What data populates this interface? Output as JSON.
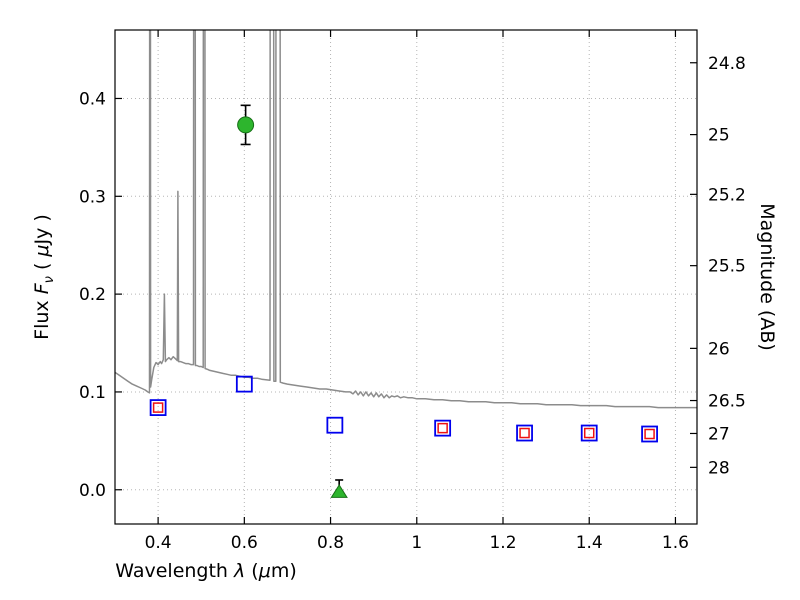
{
  "figure": {
    "xlabel": {
      "pre": "Wavelength ",
      "sym": "λ",
      "p1": " (",
      "mu": "μ",
      "post": "m)"
    },
    "ylabel_left": {
      "pre": "Flux ",
      "fsym": "F",
      "fsub": "ν",
      "p1": " ( ",
      "mu": "μ",
      "post": "Jy )"
    },
    "ylabel_right": "Magnitude (AB)"
  },
  "chart_data": {
    "type": "line",
    "title": "",
    "xlabel": "Wavelength λ (μm)",
    "ylabel": "Flux Fν ( μJy )",
    "ylabel_right": "Magnitude (AB)",
    "xlim": [
      0.3,
      1.65
    ],
    "ylim": [
      -0.035,
      0.47
    ],
    "ab_zeropoint": 23.9,
    "grid": {
      "show": true,
      "style": "dotted",
      "color": "#b5b5b5"
    },
    "frame_color": "#000000",
    "x_ticks": [
      {
        "v": 0.4,
        "label": "0.4"
      },
      {
        "v": 0.6,
        "label": "0.6"
      },
      {
        "v": 0.8,
        "label": "0.8"
      },
      {
        "v": 1.0,
        "label": "1"
      },
      {
        "v": 1.2,
        "label": "1.2"
      },
      {
        "v": 1.4,
        "label": "1.4"
      },
      {
        "v": 1.6,
        "label": "1.6"
      }
    ],
    "y_ticks_left": [
      {
        "v": 0.0,
        "label": "0.0"
      },
      {
        "v": 0.1,
        "label": "0.1"
      },
      {
        "v": 0.2,
        "label": "0.2"
      },
      {
        "v": 0.3,
        "label": "0.3"
      },
      {
        "v": 0.4,
        "label": "0.4"
      }
    ],
    "y_ticks_right": [
      {
        "mag": 24.8,
        "label": "24.8"
      },
      {
        "mag": 25.0,
        "label": "25"
      },
      {
        "mag": 25.2,
        "label": "25.2"
      },
      {
        "mag": 25.5,
        "label": "25.5"
      },
      {
        "mag": 26.0,
        "label": "26"
      },
      {
        "mag": 26.5,
        "label": "26.5"
      },
      {
        "mag": 27.0,
        "label": "27"
      },
      {
        "mag": 28.0,
        "label": "28"
      }
    ],
    "spectrum": {
      "name": "model-galaxy-spectrum",
      "color": "#8c8c8c",
      "width": 1.5,
      "points": [
        [
          0.3,
          0.12
        ],
        [
          0.31,
          0.117
        ],
        [
          0.32,
          0.114
        ],
        [
          0.33,
          0.111
        ],
        [
          0.34,
          0.108
        ],
        [
          0.35,
          0.106
        ],
        [
          0.36,
          0.104
        ],
        [
          0.37,
          0.102
        ],
        [
          0.376,
          0.1
        ],
        [
          0.38,
          0.099
        ],
        [
          0.3805,
          0.62
        ],
        [
          0.382,
          0.62
        ],
        [
          0.3825,
          0.105
        ],
        [
          0.385,
          0.112
        ],
        [
          0.39,
          0.125
        ],
        [
          0.395,
          0.13
        ],
        [
          0.4,
          0.128
        ],
        [
          0.405,
          0.131
        ],
        [
          0.408,
          0.129
        ],
        [
          0.412,
          0.133
        ],
        [
          0.4145,
          0.2
        ],
        [
          0.417,
          0.131
        ],
        [
          0.42,
          0.133
        ],
        [
          0.425,
          0.135
        ],
        [
          0.43,
          0.133
        ],
        [
          0.435,
          0.136
        ],
        [
          0.44,
          0.134
        ],
        [
          0.4445,
          0.132
        ],
        [
          0.446,
          0.305
        ],
        [
          0.4475,
          0.131
        ],
        [
          0.452,
          0.131
        ],
        [
          0.458,
          0.13
        ],
        [
          0.464,
          0.129
        ],
        [
          0.47,
          0.129
        ],
        [
          0.476,
          0.128
        ],
        [
          0.482,
          0.128
        ],
        [
          0.4825,
          0.62
        ],
        [
          0.486,
          0.62
        ],
        [
          0.4865,
          0.127
        ],
        [
          0.49,
          0.127
        ],
        [
          0.495,
          0.126
        ],
        [
          0.5,
          0.126
        ],
        [
          0.5045,
          0.125
        ],
        [
          0.505,
          0.62
        ],
        [
          0.5085,
          0.62
        ],
        [
          0.509,
          0.124
        ],
        [
          0.515,
          0.123
        ],
        [
          0.52,
          0.122
        ],
        [
          0.53,
          0.121
        ],
        [
          0.54,
          0.12
        ],
        [
          0.55,
          0.119
        ],
        [
          0.56,
          0.118
        ],
        [
          0.57,
          0.117
        ],
        [
          0.58,
          0.117
        ],
        [
          0.59,
          0.116
        ],
        [
          0.6,
          0.115
        ],
        [
          0.61,
          0.115
        ],
        [
          0.62,
          0.114
        ],
        [
          0.63,
          0.114
        ],
        [
          0.64,
          0.113
        ],
        [
          0.6595,
          0.112
        ],
        [
          0.66,
          0.62
        ],
        [
          0.668,
          0.62
        ],
        [
          0.6685,
          0.111
        ],
        [
          0.673,
          0.111
        ],
        [
          0.6735,
          0.62
        ],
        [
          0.683,
          0.62
        ],
        [
          0.6835,
          0.11
        ],
        [
          0.69,
          0.109
        ],
        [
          0.7,
          0.108
        ],
        [
          0.715,
          0.107
        ],
        [
          0.73,
          0.106
        ],
        [
          0.745,
          0.105
        ],
        [
          0.76,
          0.104
        ],
        [
          0.775,
          0.103
        ],
        [
          0.79,
          0.103
        ],
        [
          0.805,
          0.102
        ],
        [
          0.82,
          0.101
        ],
        [
          0.835,
          0.1
        ],
        [
          0.845,
          0.1
        ],
        [
          0.852,
          0.098
        ],
        [
          0.858,
          0.101
        ],
        [
          0.864,
          0.097
        ],
        [
          0.87,
          0.1
        ],
        [
          0.876,
          0.096
        ],
        [
          0.882,
          0.1
        ],
        [
          0.888,
          0.096
        ],
        [
          0.894,
          0.099
        ],
        [
          0.9,
          0.095
        ],
        [
          0.906,
          0.099
        ],
        [
          0.912,
          0.095
        ],
        [
          0.918,
          0.098
        ],
        [
          0.924,
          0.094
        ],
        [
          0.93,
          0.097
        ],
        [
          0.936,
          0.094
        ],
        [
          0.942,
          0.096
        ],
        [
          0.948,
          0.095
        ],
        [
          0.955,
          0.096
        ],
        [
          0.962,
          0.094
        ],
        [
          0.97,
          0.095
        ],
        [
          0.98,
          0.094
        ],
        [
          0.99,
          0.094
        ],
        [
          1.0,
          0.093
        ],
        [
          1.02,
          0.093
        ],
        [
          1.04,
          0.092
        ],
        [
          1.06,
          0.092
        ],
        [
          1.08,
          0.091
        ],
        [
          1.1,
          0.091
        ],
        [
          1.12,
          0.09
        ],
        [
          1.14,
          0.09
        ],
        [
          1.16,
          0.09
        ],
        [
          1.18,
          0.089
        ],
        [
          1.2,
          0.089
        ],
        [
          1.22,
          0.089
        ],
        [
          1.24,
          0.088
        ],
        [
          1.26,
          0.088
        ],
        [
          1.28,
          0.088
        ],
        [
          1.3,
          0.087
        ],
        [
          1.32,
          0.087
        ],
        [
          1.34,
          0.087
        ],
        [
          1.36,
          0.087
        ],
        [
          1.38,
          0.086
        ],
        [
          1.4,
          0.086
        ],
        [
          1.42,
          0.086
        ],
        [
          1.44,
          0.086
        ],
        [
          1.46,
          0.085
        ],
        [
          1.48,
          0.085
        ],
        [
          1.5,
          0.085
        ],
        [
          1.52,
          0.085
        ],
        [
          1.54,
          0.085
        ],
        [
          1.56,
          0.084
        ],
        [
          1.58,
          0.084
        ],
        [
          1.6,
          0.084
        ],
        [
          1.62,
          0.084
        ],
        [
          1.64,
          0.084
        ],
        [
          1.65,
          0.084
        ]
      ]
    },
    "series": [
      {
        "name": "photometry-blue-open-squares",
        "marker": "open-square",
        "color": "#0000ee",
        "size": 15,
        "stroke_width": 1.8,
        "points": [
          [
            0.4,
            0.084
          ],
          [
            0.6,
            0.108
          ],
          [
            0.81,
            0.066
          ],
          [
            1.06,
            0.063
          ],
          [
            1.25,
            0.058
          ],
          [
            1.4,
            0.058
          ],
          [
            1.54,
            0.057
          ]
        ]
      },
      {
        "name": "photometry-red-open-squares",
        "marker": "open-square",
        "color": "#ee1111",
        "size": 9,
        "stroke_width": 1.5,
        "points": [
          [
            0.4,
            0.084
          ],
          [
            1.06,
            0.063
          ],
          [
            1.25,
            0.058
          ],
          [
            1.4,
            0.058
          ],
          [
            1.54,
            0.057
          ]
        ]
      },
      {
        "name": "detection-green-circle",
        "marker": "circle",
        "color": "#2db52d",
        "edge_color": "#166e16",
        "size": 16,
        "yerr": 0.02,
        "err_color": "#000000",
        "points": [
          [
            0.603,
            0.373
          ]
        ]
      },
      {
        "name": "limit-green-triangle",
        "marker": "triangle-up",
        "color": "#2db52d",
        "edge_color": "#166e16",
        "size": 15,
        "yerr_up": 0.012,
        "err_color": "#000000",
        "points": [
          [
            0.82,
            -0.002
          ]
        ]
      }
    ]
  }
}
